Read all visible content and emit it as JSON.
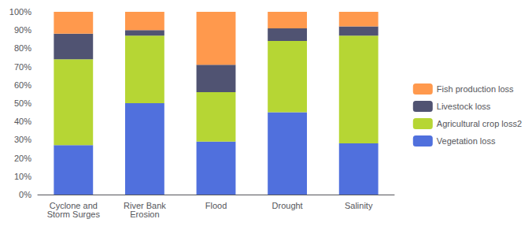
{
  "chart_data": {
    "type": "bar",
    "stacked": true,
    "categories": [
      "Cyclone and\nStorm Surges",
      "River Bank\nErosion",
      "Flood",
      "Drought",
      "Salinity"
    ],
    "series": [
      {
        "name": "Vegetation loss",
        "values": [
          27,
          50,
          29,
          45,
          28
        ]
      },
      {
        "name": "Agricultural crop loss2",
        "values": [
          47,
          37,
          27,
          39,
          59
        ]
      },
      {
        "name": "Livestock loss",
        "values": [
          14,
          3,
          15,
          7,
          5
        ]
      },
      {
        "name": "Fish production loss",
        "values": [
          12,
          10,
          29,
          9,
          8
        ]
      }
    ],
    "ylim": [
      0,
      100
    ],
    "yticks": [
      {
        "value": 0,
        "label": "0%"
      },
      {
        "value": 10,
        "label": "10%"
      },
      {
        "value": 20,
        "label": "20%"
      },
      {
        "value": 30,
        "label": "30%"
      },
      {
        "value": 40,
        "label": "40%"
      },
      {
        "value": 50,
        "label": "50%"
      },
      {
        "value": 60,
        "label": "60%"
      },
      {
        "value": 70,
        "label": "70%"
      },
      {
        "value": 80,
        "label": "80%"
      },
      {
        "value": 90,
        "label": "90%"
      },
      {
        "value": 100,
        "label": "100%"
      }
    ],
    "grid": false,
    "legend": "right"
  }
}
